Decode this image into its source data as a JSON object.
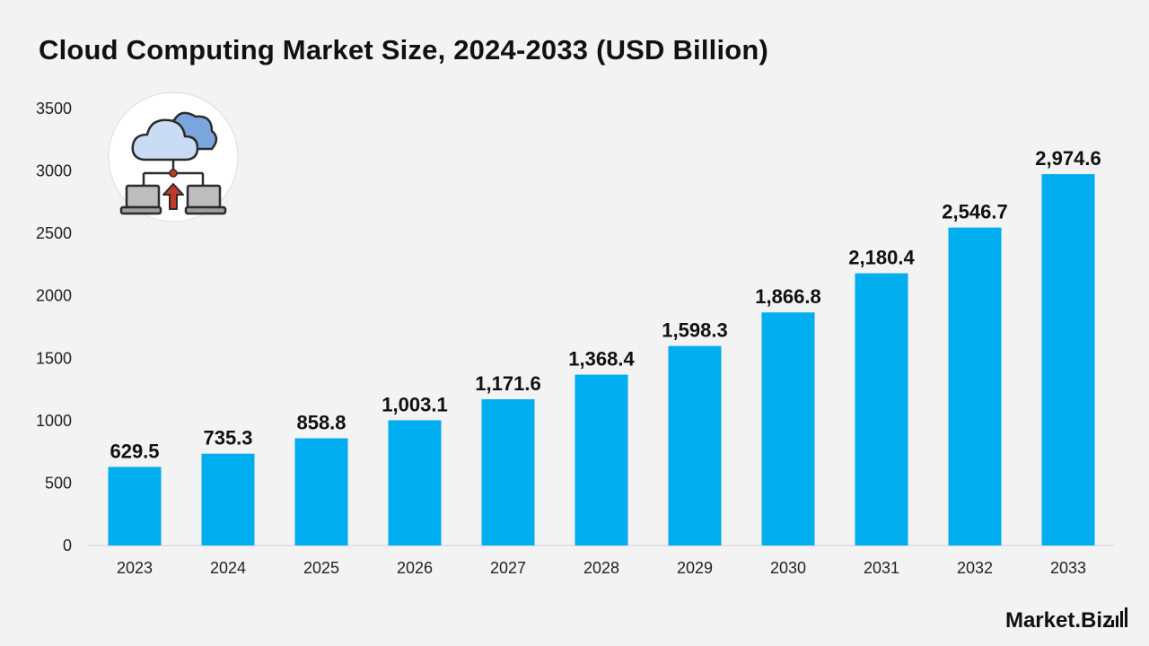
{
  "title": "Cloud Computing Market Size, 2024-2033 (USD Billion)",
  "brand": {
    "name": "Market.Biz",
    "icon": "signal-bars-icon"
  },
  "illustration": {
    "icon": "cloud-network-upload-icon"
  },
  "colors": {
    "bar": "#00adee",
    "background": "#f3f3f3",
    "axis": "#cfcfcf"
  },
  "chart_data": {
    "type": "bar",
    "title": "Cloud Computing Market Size, 2024-2033 (USD Billion)",
    "xlabel": "",
    "ylabel": "",
    "categories": [
      "2023",
      "2024",
      "2025",
      "2026",
      "2027",
      "2028",
      "2029",
      "2030",
      "2031",
      "2032",
      "2033"
    ],
    "values": [
      629.5,
      735.3,
      858.8,
      1003.1,
      1171.6,
      1368.4,
      1598.3,
      1866.8,
      2180.4,
      2546.7,
      2974.6
    ],
    "value_labels": [
      "629.5",
      "735.3",
      "858.8",
      "1,003.1",
      "1,171.6",
      "1,368.4",
      "1,598.3",
      "1,866.8",
      "2,180.4",
      "2,546.7",
      "2,974.6"
    ],
    "yticks": [
      "0",
      "500",
      "1000",
      "1500",
      "2000",
      "2500",
      "3000",
      "3500"
    ],
    "ylim": [
      0,
      3500
    ],
    "grid": false,
    "legend": "none"
  }
}
